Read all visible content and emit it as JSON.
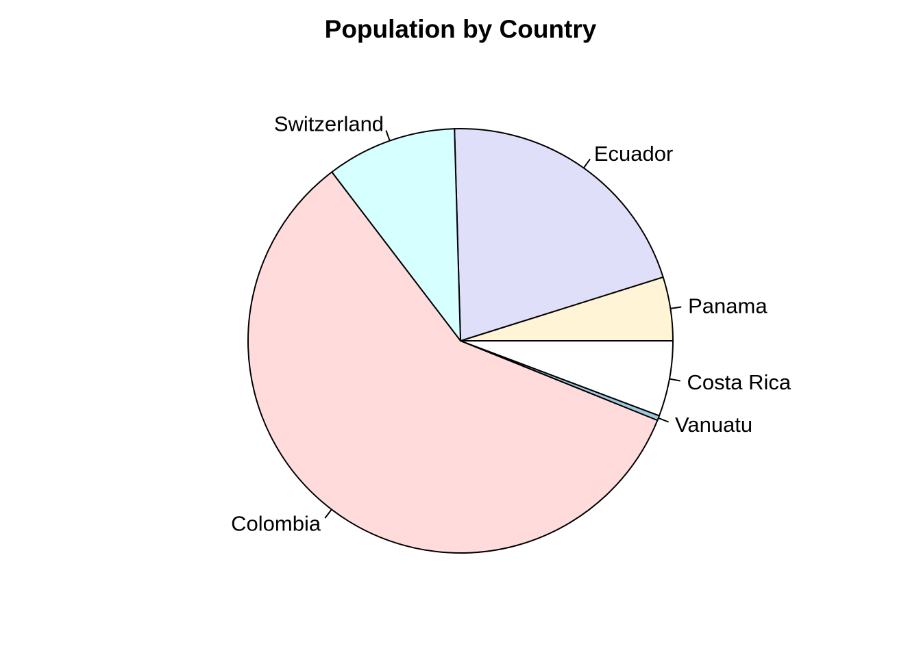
{
  "chart_data": {
    "type": "pie",
    "title": "Population by Country",
    "slices": [
      {
        "label": "Panama",
        "value": 4.9,
        "color": "#FFF5D6"
      },
      {
        "label": "Ecuador",
        "value": 20.8,
        "color": "#DFDFF9"
      },
      {
        "label": "Switzerland",
        "value": 10.0,
        "color": "#D6FFFF"
      },
      {
        "label": "Colombia",
        "value": 59.1,
        "color": "#FFDCDB"
      },
      {
        "label": "Vanuatu",
        "value": 0.37,
        "color": "#9FC8DE"
      },
      {
        "label": "Costa Rica",
        "value": 5.8,
        "color": "#FFFFFF"
      }
    ],
    "start": "3 o'clock",
    "direction": "counterclockwise",
    "legend": "none"
  }
}
